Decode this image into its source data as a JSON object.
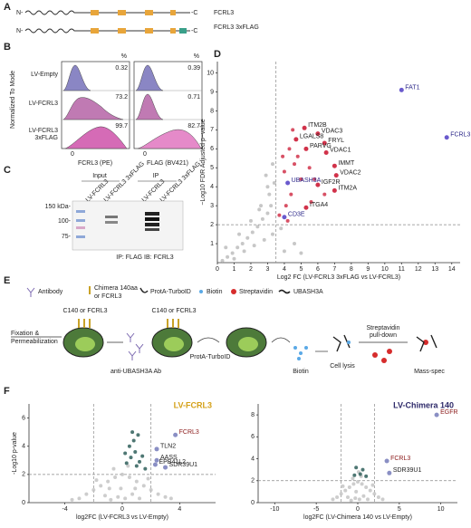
{
  "panel_letters": [
    "A",
    "B",
    "C",
    "D",
    "E",
    "F"
  ],
  "panel_a": {
    "n_term": "N-",
    "c_term": "-C",
    "constructs": [
      "FCRL3",
      "FCRL3 3xFLAG"
    ]
  },
  "panel_b": {
    "ylabel": "Normalized To Mode",
    "percent_header": "%",
    "rows": [
      "LV-Empty",
      "LV-FCRL3",
      [
        "LV-FCRL3",
        "3xFLAG"
      ]
    ],
    "percents": [
      [
        "0.32",
        "73.2",
        "99.7"
      ],
      [
        "0.39",
        "0.71",
        "82.7"
      ]
    ],
    "zero": "0",
    "xlabels": [
      "FCRL3 (PE)",
      "FLAG (BV421)"
    ]
  },
  "panel_c": {
    "groups": [
      "Input",
      "IP"
    ],
    "lanes": [
      "LV-FCRL3",
      "LV-FCRL3 3xFLAG"
    ],
    "markers": [
      "150 kDa-",
      "100-",
      "75-"
    ],
    "caption": "IP: FLAG IB: FCRL3"
  },
  "panel_e": {
    "legend": [
      "Antibody",
      [
        "Chimera 140aa",
        "or FCRL3"
      ],
      "ProtA-TurboID",
      "Biotin",
      "Streptavidin",
      "UBASH3A"
    ],
    "steps": [
      [
        "Fixation &",
        "Permeabilization"
      ],
      "C140 or FCRL3",
      "anti-UBASH3A Ab",
      "ProtA-TurboID",
      "Biotin",
      "Cell lysis",
      [
        "Streptavidin",
        "pull-down"
      ],
      "Mass-spec"
    ]
  },
  "chart_data": [
    {
      "type": "scatter",
      "xlabel": "Log2 FC (LV-FCRL3 3xFLAG vs LV-FCRL3)",
      "ylabel": "−Log10 FDR Adjusted p−value",
      "xlim": [
        0,
        14.5
      ],
      "ylim": [
        0,
        10.6
      ],
      "xticks": [
        0,
        1,
        2,
        3,
        4,
        5,
        6,
        7,
        8,
        9,
        10,
        11,
        12,
        13,
        14
      ],
      "yticks": [
        1,
        2,
        3,
        4,
        5,
        6,
        7,
        8,
        9,
        10
      ],
      "thresholds": {
        "x": 3.5,
        "y": 2
      },
      "background": {
        "color": "#bdbdbd",
        "x": [
          0.3,
          0.6,
          0.9,
          1.2,
          1.5,
          1.8,
          2.1,
          2.4,
          2.7,
          3.0,
          3.2,
          1.0,
          1.6,
          2.2,
          2.8,
          3.3,
          2.0,
          2.6,
          3.1,
          3.4,
          2.9,
          3.3,
          1.3,
          0.5,
          4.0,
          4.6,
          5.0,
          3.8,
          2.5,
          3.0
        ],
        "y": [
          0.1,
          0.3,
          0.5,
          0.8,
          1.0,
          1.3,
          1.6,
          1.9,
          2.3,
          2.6,
          3.0,
          0.2,
          0.6,
          0.9,
          1.2,
          1.5,
          2.2,
          3.0,
          3.6,
          4.2,
          4.6,
          5.2,
          1.5,
          0.8,
          0.6,
          1.0,
          0.5,
          1.8,
          2.8,
          4.0
        ]
      },
      "significant": {
        "color": "#d1324a",
        "x": [
          3.7,
          4.1,
          4.4,
          4.0,
          4.6,
          5.0,
          4.3,
          4.8,
          5.5,
          5.8,
          4.5,
          5.6,
          3.9,
          6.4,
          4.2
        ],
        "y": [
          2.5,
          3.0,
          3.6,
          4.8,
          5.2,
          4.4,
          6.0,
          5.6,
          5.0,
          4.4,
          7.0,
          3.2,
          5.6,
          3.6,
          2.2
        ]
      },
      "labeled": {
        "labels": [
          "ITM2B",
          "VDAC3",
          "LGALS8",
          "FRYL",
          "PARVG",
          "VDAC1",
          "IMMT",
          "VDAC2",
          "IGF2R",
          "ITM2A",
          "ITGA4",
          "UBASH3A",
          "CD3E",
          "FAT1",
          "FCRL3"
        ],
        "x": [
          5.2,
          6.0,
          4.7,
          6.4,
          5.3,
          6.5,
          7.0,
          7.1,
          6.0,
          7.0,
          5.3,
          4.2,
          4.0,
          11.0,
          13.7
        ],
        "y": [
          7.1,
          6.8,
          6.5,
          6.3,
          6.0,
          5.8,
          5.1,
          4.6,
          4.1,
          3.8,
          2.9,
          4.2,
          2.4,
          9.1,
          6.6
        ],
        "colors": [
          "#d1324a",
          "#d1324a",
          "#d1324a",
          "#d1324a",
          "#d1324a",
          "#d1324a",
          "#d1324a",
          "#d1324a",
          "#d1324a",
          "#d1324a",
          "#d1324a",
          "#6a5acd",
          "#6a5acd",
          "#6a5acd",
          "#6a5acd"
        ],
        "label_colors": [
          "#222",
          "#222",
          "#222",
          "#222",
          "#222",
          "#222",
          "#222",
          "#222",
          "#222",
          "#222",
          "#222",
          "#2e2a8a",
          "#2e2a8a",
          "#2e2a8a",
          "#2e2a8a"
        ]
      }
    },
    {
      "type": "scatter",
      "title": "LV-FCRL3",
      "title_color": "#d4a017",
      "xlabel": "log2FC (LV-FCRL3 vs LV-Empty)",
      "ylabel": "-Log10 p-value",
      "xlim": [
        -6.5,
        6.5
      ],
      "ylim": [
        0,
        7
      ],
      "xticks": [
        -4,
        0,
        4
      ],
      "yticks": [
        0,
        2,
        4,
        6
      ],
      "thresholds": {
        "x": [
          -2,
          2
        ],
        "y": 2
      },
      "background": {
        "color": "#c4c4c4",
        "x": [
          -3,
          -2.5,
          -2,
          -1.5,
          -1,
          -0.5,
          0,
          0.5,
          1,
          1.5,
          2,
          2.5,
          3,
          -1.2,
          -0.8,
          -0.3,
          0.2,
          0.7,
          1.2,
          -0.6,
          0.4,
          -1.8,
          1.8,
          -3.5,
          3.4,
          -0.1,
          0.9,
          -0.9
        ],
        "y": [
          0.3,
          0.6,
          0.9,
          1.2,
          1.5,
          1.8,
          2.0,
          1.8,
          1.5,
          1.2,
          0.9,
          0.6,
          0.4,
          0.5,
          0.2,
          0.4,
          0.3,
          0.6,
          0.3,
          2.4,
          2.6,
          1.6,
          1.7,
          0.2,
          0.3,
          1.0,
          1.0,
          1.0
        ]
      },
      "significant": {
        "color": "#2f5f5a",
        "x": [
          0.3,
          0.6,
          0.9,
          1.2,
          0.5,
          0.8,
          1.4,
          0.2,
          1.0,
          1.6,
          0.7,
          1.1
        ],
        "y": [
          2.8,
          3.2,
          3.6,
          2.9,
          4.0,
          4.4,
          3.3,
          3.5,
          2.6,
          2.4,
          5.0,
          4.8
        ]
      },
      "labeled": {
        "labels": [
          "FCRL3",
          "TLN2",
          "AASS",
          "EPB41L2",
          "SDR39U1"
        ],
        "x": [
          3.7,
          2.4,
          2.4,
          2.3,
          3.0
        ],
        "y": [
          4.8,
          3.8,
          3.0,
          2.7,
          2.5
        ],
        "colors": [
          "#8a8fc4",
          "#8a8fc4",
          "#8a8fc4",
          "#8a8fc4",
          "#8a8fc4"
        ],
        "label_colors": [
          "#8b1a1a",
          "#222",
          "#222",
          "#222",
          "#222"
        ]
      }
    },
    {
      "type": "scatter",
      "title": "LV-Chimera 140",
      "title_color": "#2e2a6a",
      "xlabel": "log2FC (LV-Chimera 140 vs LV-Empty)",
      "ylabel": "",
      "xlim": [
        -12,
        12
      ],
      "ylim": [
        0,
        9
      ],
      "xticks": [
        -10,
        -5,
        0,
        5,
        10
      ],
      "yticks": [
        0,
        2,
        4,
        6,
        8
      ],
      "thresholds": {
        "x": [
          -2,
          2
        ],
        "y": 2
      },
      "background": {
        "color": "#c4c4c4",
        "x": [
          -3,
          -2.5,
          -2,
          -1.5,
          -1,
          -0.5,
          0,
          0.5,
          1,
          1.5,
          2,
          2.5,
          3,
          -1.2,
          -0.8,
          -0.3,
          0.2,
          0.7,
          1.2,
          -0.6,
          0.4,
          -1.8,
          1.8,
          0.1,
          -0.2
        ],
        "y": [
          0.3,
          0.5,
          0.8,
          1.1,
          1.4,
          1.7,
          1.9,
          1.7,
          1.4,
          1.1,
          0.8,
          0.5,
          0.3,
          0.5,
          0.2,
          0.4,
          0.3,
          0.6,
          0.3,
          2.2,
          2.4,
          1.5,
          1.6,
          2.8,
          1.0
        ]
      },
      "significant": {
        "color": "#2f5f5a",
        "x": [
          0.3,
          -0.4,
          0.6,
          1.0,
          -0.2
        ],
        "y": [
          2.6,
          2.5,
          3.0,
          2.4,
          3.2
        ]
      },
      "labeled": {
        "labels": [
          "EGFR",
          "FCRL3",
          "SDR39U1"
        ],
        "x": [
          9.5,
          3.5,
          3.8
        ],
        "y": [
          8.0,
          3.8,
          2.7
        ],
        "colors": [
          "#8a8fc4",
          "#8a8fc4",
          "#8a8fc4"
        ],
        "label_colors": [
          "#8b1a1a",
          "#8b1a1a",
          "#222"
        ]
      }
    }
  ]
}
